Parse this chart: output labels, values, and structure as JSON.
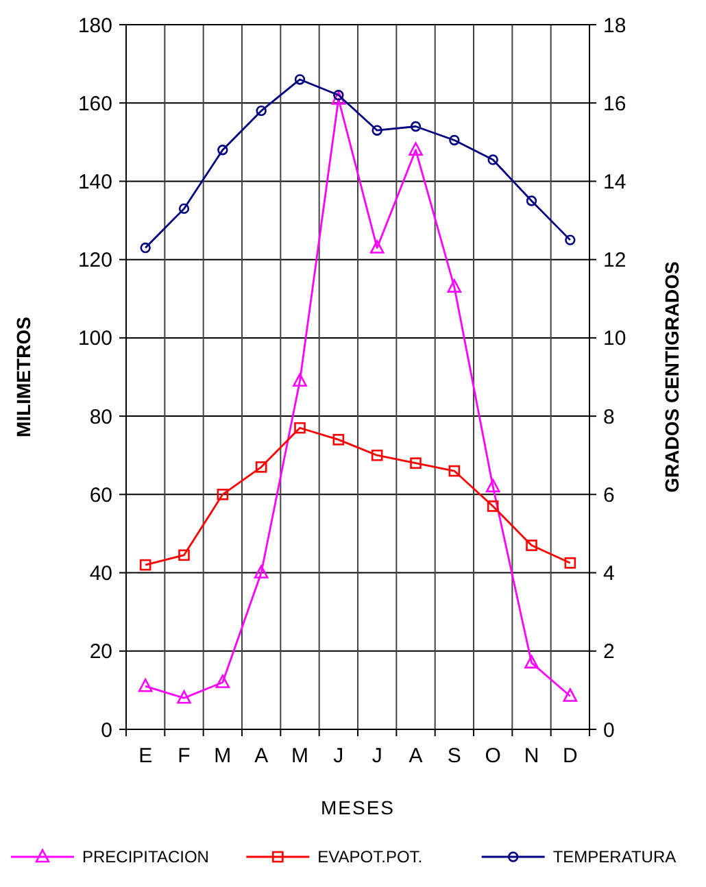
{
  "chart_data": {
    "type": "line",
    "xlabel": "MESES",
    "ylabel": "MILIMETROS",
    "y2label": "GRADOS CENTIGRADOS",
    "categories": [
      "E",
      "F",
      "M",
      "A",
      "M",
      "J",
      "J",
      "A",
      "S",
      "O",
      "N",
      "D"
    ],
    "series": [
      {
        "name": "PRECIPITACION",
        "color": "#ff00ff",
        "marker": "triangle",
        "values": [
          11,
          8,
          12,
          40,
          89,
          161,
          123,
          148,
          113,
          62,
          17,
          8.5
        ]
      },
      {
        "name": "EVAPOT.POT.",
        "color": "#ff0000",
        "marker": "square",
        "values": [
          42,
          44.5,
          60,
          67,
          77,
          74,
          70,
          68,
          66,
          57,
          47,
          42.5
        ]
      },
      {
        "name": "TEMPERATURA",
        "color": "#000080",
        "marker": "circle",
        "axis": "y2",
        "values": [
          12.3,
          13.3,
          14.8,
          15.8,
          16.6,
          16.2,
          15.3,
          15.4,
          15.05,
          14.55,
          13.5,
          12.5
        ]
      }
    ],
    "ylim": [
      0,
      180
    ],
    "yticks": [
      0,
      20,
      40,
      60,
      80,
      100,
      120,
      140,
      160,
      180
    ],
    "y2lim": [
      0,
      18
    ],
    "y2ticks": [
      0,
      2,
      4,
      6,
      8,
      10,
      12,
      14,
      16,
      18
    ],
    "grid": true,
    "legend": "bottom"
  }
}
